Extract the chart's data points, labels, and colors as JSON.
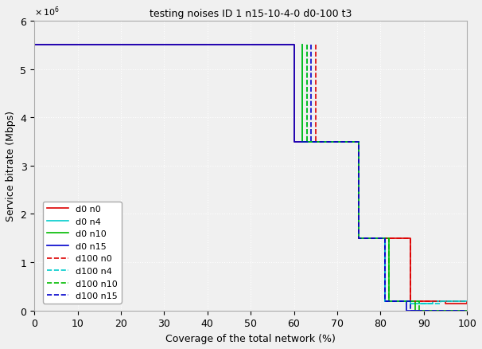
{
  "title": "testing noises ID 1 n15-10-4-0 d0-100 t3",
  "xlabel": "Coverage of the total network (%)",
  "ylabel": "Service bitrate (Mbps)",
  "xlim": [
    0,
    100
  ],
  "ylim": [
    0,
    6000000
  ],
  "bg_color": "#f0f0f0",
  "axes_bg_color": "#f0f0f0",
  "series": [
    {
      "label": "d0 n0",
      "color": "#dd0000",
      "linestyle": "solid",
      "linewidth": 1.2,
      "x": [
        0,
        60,
        60,
        75,
        75,
        87,
        87,
        95,
        95,
        100
      ],
      "y": [
        5500000,
        5500000,
        3500000,
        3500000,
        1500000,
        1500000,
        200000,
        200000,
        150000,
        150000
      ]
    },
    {
      "label": "d0 n4",
      "color": "#00cccc",
      "linestyle": "solid",
      "linewidth": 1.2,
      "x": [
        62,
        62,
        75,
        75,
        81,
        81,
        87,
        87,
        92,
        92,
        100
      ],
      "y": [
        5500000,
        3500000,
        3500000,
        1500000,
        1500000,
        200000,
        200000,
        150000,
        150000,
        200000,
        200000
      ]
    },
    {
      "label": "d0 n10",
      "color": "#00bb00",
      "linestyle": "solid",
      "linewidth": 1.2,
      "x": [
        62,
        62,
        75,
        75,
        82,
        82,
        88,
        88,
        100
      ],
      "y": [
        5500000,
        3500000,
        3500000,
        1500000,
        1500000,
        200000,
        200000,
        0,
        0
      ]
    },
    {
      "label": "d0 n15",
      "color": "#0000cc",
      "linestyle": "solid",
      "linewidth": 1.2,
      "x": [
        0,
        60,
        60,
        75,
        75,
        81,
        81,
        86,
        86,
        100
      ],
      "y": [
        5500000,
        5500000,
        3500000,
        3500000,
        1500000,
        1500000,
        200000,
        200000,
        0,
        0
      ]
    },
    {
      "label": "d100 n0",
      "color": "#dd0000",
      "linestyle": "dashed",
      "linewidth": 1.2,
      "x": [
        65,
        65,
        75,
        75,
        87,
        87,
        100,
        100
      ],
      "y": [
        5500000,
        3500000,
        3500000,
        1500000,
        1500000,
        200000,
        200000,
        150000
      ]
    },
    {
      "label": "d100 n4",
      "color": "#00cccc",
      "linestyle": "dashed",
      "linewidth": 1.2,
      "x": [
        63,
        63,
        75,
        75,
        81,
        81,
        89,
        89,
        94,
        94,
        100
      ],
      "y": [
        5500000,
        3500000,
        3500000,
        1500000,
        1500000,
        200000,
        200000,
        150000,
        150000,
        200000,
        200000
      ]
    },
    {
      "label": "d100 n10",
      "color": "#00bb00",
      "linestyle": "dashed",
      "linewidth": 1.2,
      "x": [
        63,
        63,
        75,
        75,
        82,
        82,
        89,
        89,
        100
      ],
      "y": [
        5500000,
        3500000,
        3500000,
        1500000,
        1500000,
        200000,
        200000,
        0,
        0
      ]
    },
    {
      "label": "d100 n15",
      "color": "#0000cc",
      "linestyle": "dashed",
      "linewidth": 1.2,
      "x": [
        64,
        64,
        75,
        75,
        81,
        81,
        87,
        87,
        100
      ],
      "y": [
        5500000,
        3500000,
        3500000,
        1500000,
        1500000,
        200000,
        200000,
        0,
        0
      ]
    }
  ],
  "fontsize": 9,
  "title_fontsize": 9,
  "legend_fontsize": 8
}
